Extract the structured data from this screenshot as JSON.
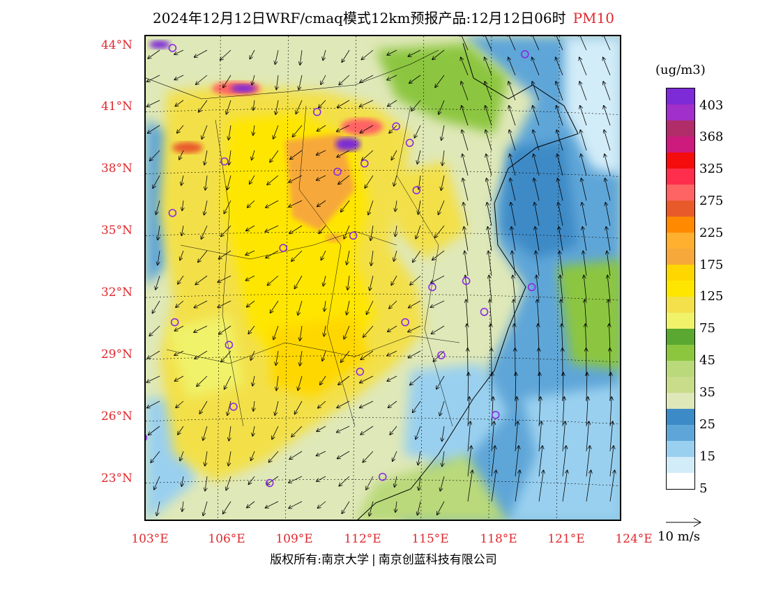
{
  "header": {
    "title": "2024年12月12日WRF/cmaq模式12km预报产品:12月12日06时",
    "pollutant": "PM10"
  },
  "axes": {
    "lat_labels": [
      "44°N",
      "41°N",
      "38°N",
      "35°N",
      "32°N",
      "29°N",
      "26°N",
      "23°N"
    ],
    "lon_labels": [
      "103°E",
      "106°E",
      "109°E",
      "112°E",
      "115°E",
      "118°E",
      "121°E",
      "124°E"
    ]
  },
  "legend": {
    "unit": "(ug/m3)",
    "labels": [
      "403",
      "368",
      "325",
      "275",
      "225",
      "175",
      "125",
      "75",
      "45",
      "35",
      "25",
      "15",
      "5"
    ],
    "colors": [
      "#7d2bd6",
      "#a12fc9",
      "#b02d6a",
      "#cc1a7d",
      "#f50c0c",
      "#ff2e4d",
      "#ff6464",
      "#e85a2a",
      "#ff8a00",
      "#ffb02e",
      "#f7a83a",
      "#ffd700",
      "#ffe600",
      "#f3e04a",
      "#f0f26a",
      "#5aa832",
      "#8cc63f",
      "#b9d97a",
      "#c8dc8a",
      "#dfe8b8",
      "#3c8ac6",
      "#5ea6d8",
      "#9ad0ef",
      "#d2ecf8",
      "#ffffff"
    ],
    "wind_ref": "10 m/s"
  },
  "cities": [
    {
      "lon": 104.0,
      "lat": 43.9
    },
    {
      "lon": 119.6,
      "lat": 43.6
    },
    {
      "lon": 110.4,
      "lat": 40.8
    },
    {
      "lon": 113.9,
      "lat": 40.1
    },
    {
      "lon": 114.5,
      "lat": 39.3
    },
    {
      "lon": 106.3,
      "lat": 38.4
    },
    {
      "lon": 112.5,
      "lat": 38.3
    },
    {
      "lon": 111.3,
      "lat": 37.9
    },
    {
      "lon": 114.8,
      "lat": 37.0
    },
    {
      "lon": 104.0,
      "lat": 35.9
    },
    {
      "lon": 112.0,
      "lat": 34.8
    },
    {
      "lon": 108.9,
      "lat": 34.2
    },
    {
      "lon": 115.5,
      "lat": 32.3
    },
    {
      "lon": 117.0,
      "lat": 32.6
    },
    {
      "lon": 119.9,
      "lat": 32.3
    },
    {
      "lon": 104.1,
      "lat": 30.6
    },
    {
      "lon": 114.3,
      "lat": 30.6
    },
    {
      "lon": 117.8,
      "lat": 31.1
    },
    {
      "lon": 106.5,
      "lat": 29.5
    },
    {
      "lon": 115.9,
      "lat": 29.0
    },
    {
      "lon": 112.3,
      "lat": 28.2
    },
    {
      "lon": 106.7,
      "lat": 26.5
    },
    {
      "lon": 118.3,
      "lat": 26.1
    },
    {
      "lon": 102.7,
      "lat": 25.0
    },
    {
      "lon": 108.3,
      "lat": 22.8
    },
    {
      "lon": 113.3,
      "lat": 23.1
    }
  ],
  "footer": {
    "copyright": "版权所有:南京大学",
    "company": "南京创蓝科技有限公司"
  }
}
